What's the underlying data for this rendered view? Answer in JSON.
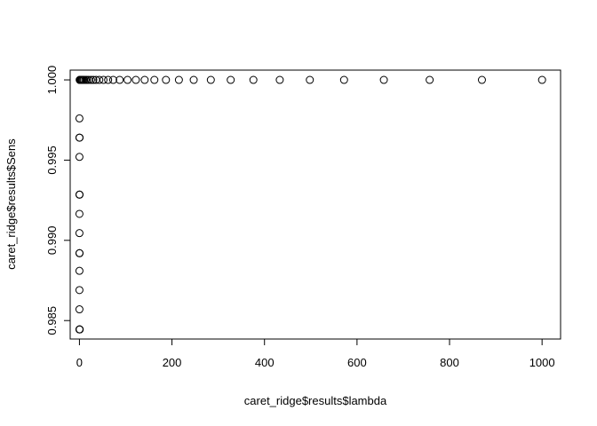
{
  "chart_data": {
    "type": "scatter",
    "title": "",
    "xlabel": "caret_ridge$results$lambda",
    "ylabel": "caret_ridge$results$Sens",
    "xlim": [
      -20,
      1040
    ],
    "ylim": [
      0.98385,
      1.00061
    ],
    "x_ticks": [
      0,
      200,
      400,
      600,
      800,
      1000
    ],
    "y_ticks": [
      0.985,
      0.99,
      0.995,
      1.0
    ],
    "x_tick_labels": [
      "0",
      "200",
      "400",
      "600",
      "800",
      "1000"
    ],
    "y_tick_labels": [
      "0.985",
      "0.990",
      "0.995",
      "1.000"
    ],
    "grid": false,
    "marker": "open-circle",
    "points": [
      {
        "x": 0,
        "y": 0.98445
      },
      {
        "x": 0.3,
        "y": 0.98445
      },
      {
        "x": 0.6,
        "y": 0.98445
      },
      {
        "x": 0,
        "y": 0.9857
      },
      {
        "x": 0,
        "y": 0.9869
      },
      {
        "x": 0,
        "y": 0.9881
      },
      {
        "x": 0,
        "y": 0.9892
      },
      {
        "x": 0.3,
        "y": 0.9892
      },
      {
        "x": 0,
        "y": 0.99045
      },
      {
        "x": 0,
        "y": 0.99165
      },
      {
        "x": 0,
        "y": 0.99285
      },
      {
        "x": 0.3,
        "y": 0.99285
      },
      {
        "x": 0,
        "y": 0.9952
      },
      {
        "x": 0,
        "y": 0.9964
      },
      {
        "x": 0.3,
        "y": 0.9964
      },
      {
        "x": 0,
        "y": 0.9976
      },
      {
        "x": 0.5,
        "y": 1.0
      },
      {
        "x": 1,
        "y": 1.0
      },
      {
        "x": 2,
        "y": 1.0
      },
      {
        "x": 3,
        "y": 1.0
      },
      {
        "x": 4.5,
        "y": 1.0
      },
      {
        "x": 6,
        "y": 1.0
      },
      {
        "x": 8,
        "y": 1.0
      },
      {
        "x": 10,
        "y": 1.0
      },
      {
        "x": 13,
        "y": 1.0
      },
      {
        "x": 16,
        "y": 1.0
      },
      {
        "x": 20,
        "y": 1.0
      },
      {
        "x": 25,
        "y": 1.0
      },
      {
        "x": 30,
        "y": 1.0
      },
      {
        "x": 36,
        "y": 1.0
      },
      {
        "x": 43,
        "y": 1.0
      },
      {
        "x": 52,
        "y": 1.0
      },
      {
        "x": 62,
        "y": 1.0
      },
      {
        "x": 73,
        "y": 1.0
      },
      {
        "x": 87,
        "y": 1.0
      },
      {
        "x": 104,
        "y": 1.0
      },
      {
        "x": 122,
        "y": 1.0
      },
      {
        "x": 141,
        "y": 1.0
      },
      {
        "x": 162,
        "y": 1.0
      },
      {
        "x": 187,
        "y": 1.0
      },
      {
        "x": 215,
        "y": 1.0
      },
      {
        "x": 247,
        "y": 1.0
      },
      {
        "x": 284,
        "y": 1.0
      },
      {
        "x": 327,
        "y": 1.0
      },
      {
        "x": 376,
        "y": 1.0
      },
      {
        "x": 433,
        "y": 1.0
      },
      {
        "x": 498,
        "y": 1.0
      },
      {
        "x": 572,
        "y": 1.0
      },
      {
        "x": 658,
        "y": 1.0
      },
      {
        "x": 757,
        "y": 1.0
      },
      {
        "x": 870,
        "y": 1.0
      },
      {
        "x": 1000,
        "y": 1.0
      }
    ]
  }
}
